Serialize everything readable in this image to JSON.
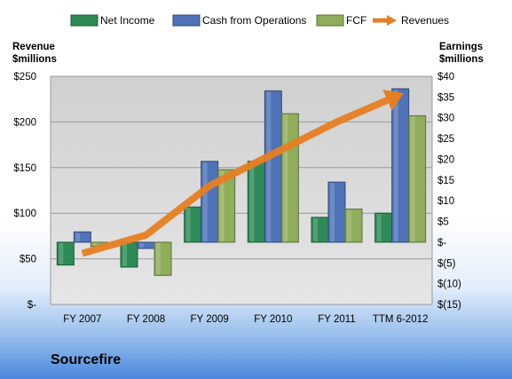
{
  "company": "Sourcefire",
  "chart_data": {
    "type": "bar",
    "categories": [
      "FY 2007",
      "FY 2008",
      "FY 2009",
      "FY 2010",
      "FY 2011",
      "TTM 6-2012"
    ],
    "series": [
      {
        "name": "Net Income",
        "axis": "right",
        "color": "#2e8b57",
        "values": [
          -5.5,
          -6,
          8.5,
          19.5,
          6,
          7
        ]
      },
      {
        "name": "Cash from Operations",
        "axis": "right",
        "color": "#4f72b8",
        "values": [
          2.5,
          -1.5,
          19.5,
          36.5,
          14.5,
          37
        ]
      },
      {
        "name": "FCF",
        "axis": "right",
        "color": "#8fad5a",
        "values": [
          -1,
          -8,
          17.5,
          31,
          8,
          30.5
        ]
      },
      {
        "name": "Revenues",
        "axis": "left",
        "type": "line",
        "color": "#e67e22",
        "values": [
          56,
          76,
          130,
          165,
          200,
          230
        ]
      }
    ],
    "ylabel_left": "Revenue\n$millions",
    "ylabel_right": "Earnings\n$millions",
    "left_axis": {
      "ylim": [
        0,
        250
      ],
      "ticks": [
        {
          "v": 0,
          "label": "$-"
        },
        {
          "v": 50,
          "label": "$50"
        },
        {
          "v": 100,
          "label": "$100"
        },
        {
          "v": 150,
          "label": "$150"
        },
        {
          "v": 200,
          "label": "$200"
        },
        {
          "v": 250,
          "label": "$250"
        }
      ]
    },
    "right_axis": {
      "ylim": [
        -15,
        40
      ],
      "ticks": [
        {
          "v": 40,
          "label": "$40"
        },
        {
          "v": 35,
          "label": "$35"
        },
        {
          "v": 30,
          "label": "$30"
        },
        {
          "v": 25,
          "label": "$25"
        },
        {
          "v": 20,
          "label": "$20"
        },
        {
          "v": 15,
          "label": "$15"
        },
        {
          "v": 10,
          "label": "$10"
        },
        {
          "v": 5,
          "label": "$5"
        },
        {
          "v": 0,
          "label": "$-"
        },
        {
          "v": -5,
          "label": "$(5)"
        },
        {
          "v": -10,
          "label": "$(10)"
        },
        {
          "v": -15,
          "label": "$(15)"
        }
      ]
    },
    "grid": true,
    "legend": "top"
  }
}
